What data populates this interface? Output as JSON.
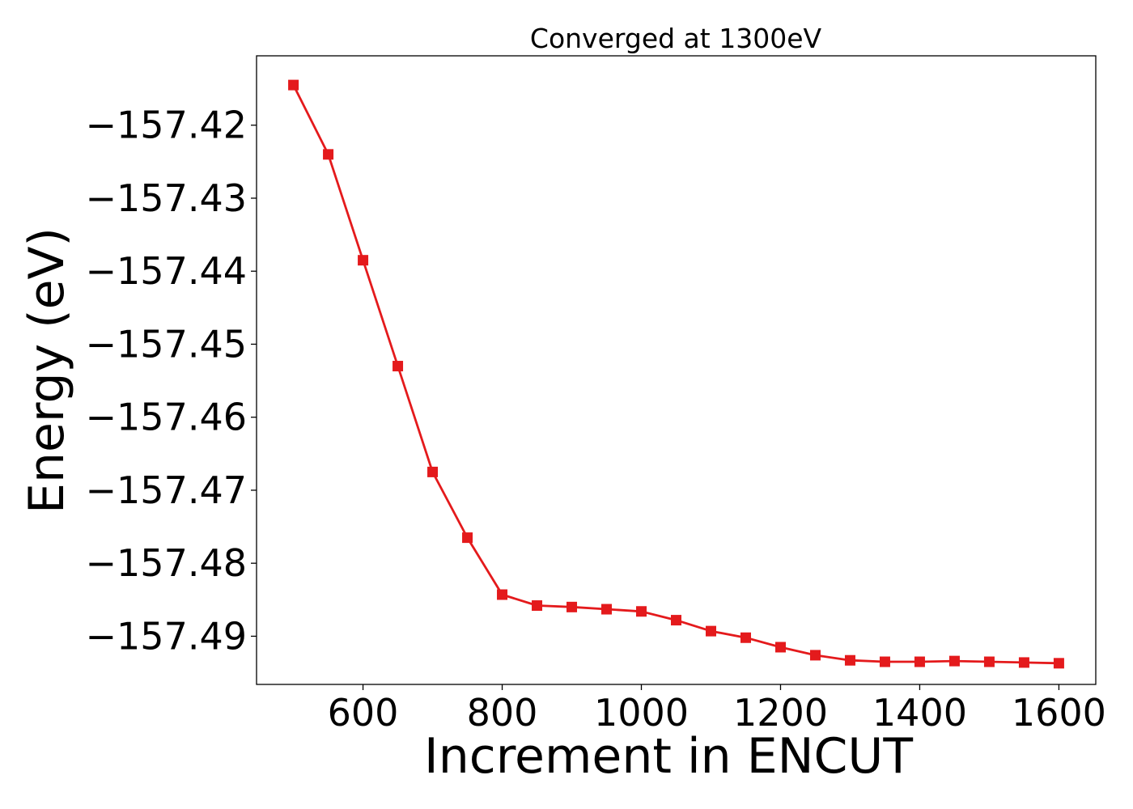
{
  "chart_data": {
    "type": "line",
    "title": "Converged at 1300eV",
    "xlabel": "Increment in ENCUT",
    "ylabel": "Energy (eV)",
    "x": [
      500,
      550,
      600,
      650,
      700,
      750,
      800,
      850,
      900,
      950,
      1000,
      1050,
      1100,
      1150,
      1200,
      1250,
      1300,
      1350,
      1400,
      1450,
      1500,
      1550,
      1600
    ],
    "series": [
      {
        "name": "",
        "color": "#e41a1c",
        "marker": "square",
        "values": [
          -157.4145,
          -157.424,
          -157.4385,
          -157.453,
          -157.4675,
          -157.4765,
          -157.4843,
          -157.4858,
          -157.486,
          -157.4863,
          -157.4866,
          -157.4878,
          -157.4893,
          -157.4902,
          -157.4915,
          -157.4926,
          -157.4933,
          -157.4935,
          -157.4935,
          -157.4934,
          -157.4935,
          -157.4936,
          -157.4937
        ]
      }
    ],
    "xlim": [
      447,
      1653
    ],
    "ylim": [
      -157.4966,
      -157.4105
    ],
    "xticks": [
      600,
      800,
      1000,
      1200,
      1400,
      1600
    ],
    "xtick_labels": [
      "600",
      "800",
      "1000",
      "1200",
      "1400",
      "1600"
    ],
    "yticks": [
      -157.42,
      -157.43,
      -157.44,
      -157.45,
      -157.46,
      -157.47,
      -157.48,
      -157.49
    ],
    "ytick_labels": [
      "−157.42",
      "−157.43",
      "−157.44",
      "−157.45",
      "−157.46",
      "−157.47",
      "−157.48",
      "−157.49"
    ],
    "grid": false,
    "legend": "none"
  }
}
